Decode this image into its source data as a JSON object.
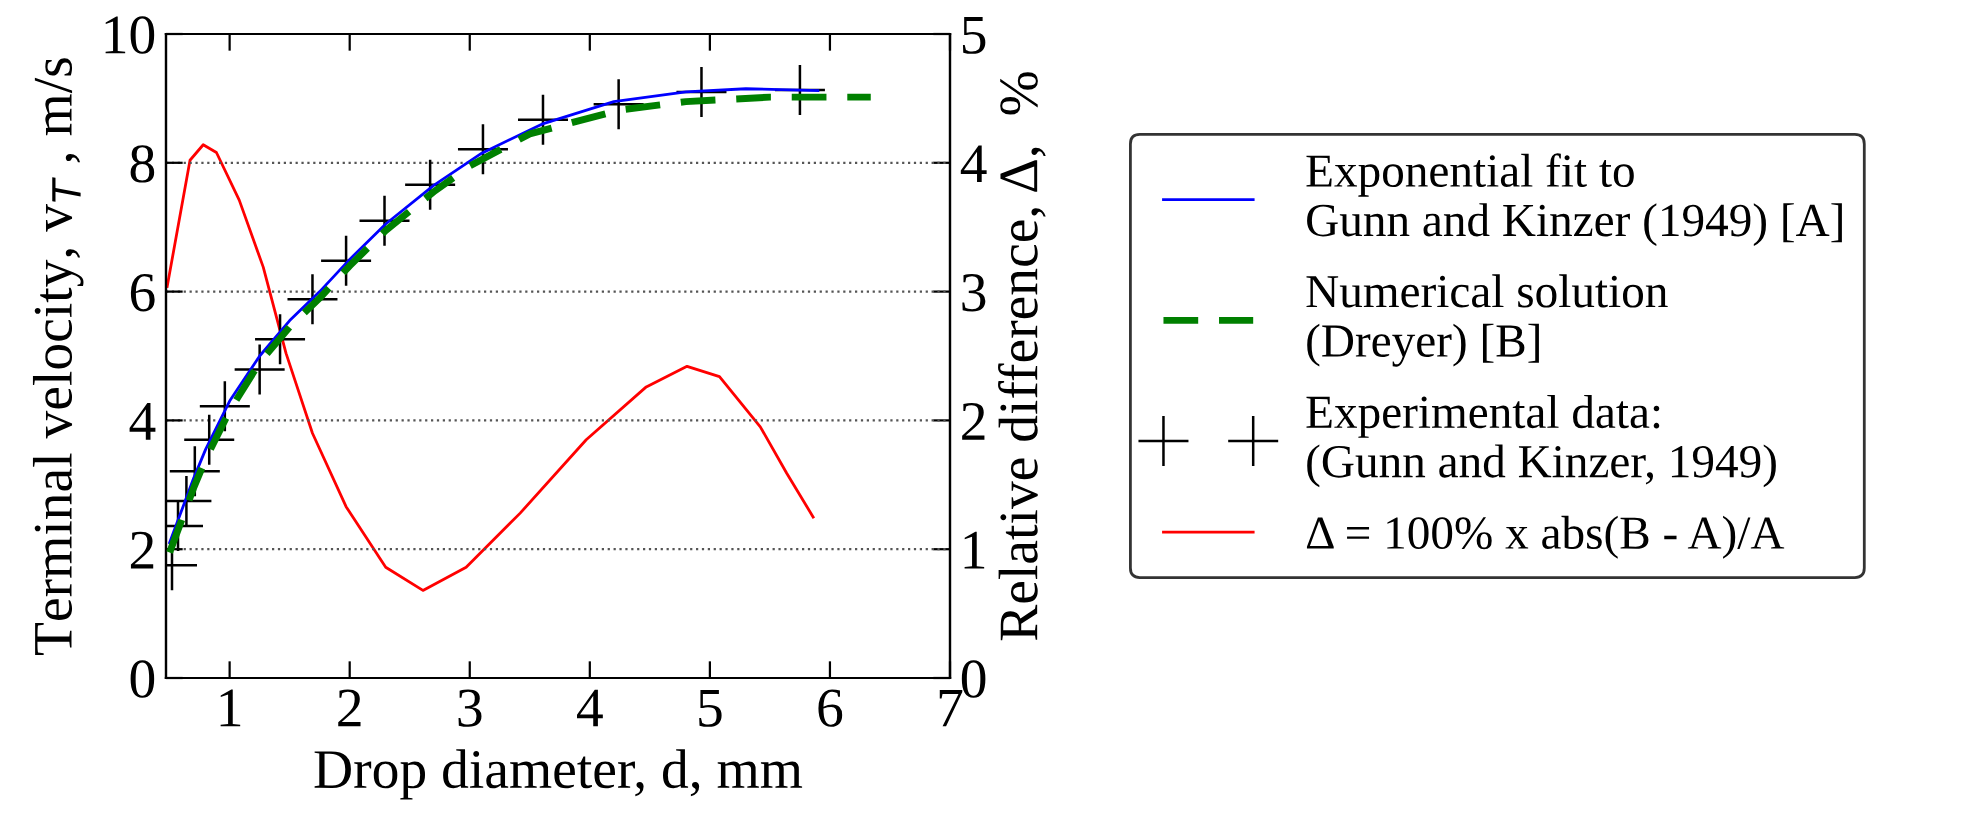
{
  "chart_data": {
    "type": "line",
    "xlabel": "Drop diameter, d, mm",
    "ylabel": "Terminal velocity, v$_{T}$ , m/s",
    "y2label": "Relative difference, Δ,  %",
    "xlim": [
      0.47,
      7
    ],
    "xticks": [
      1,
      2,
      3,
      4,
      5,
      6,
      7
    ],
    "ylim": [
      0,
      10
    ],
    "yticks": [
      0,
      2,
      4,
      6,
      8,
      10
    ],
    "y2lim": [
      0,
      5
    ],
    "y2ticks": [
      0,
      1,
      2,
      3,
      4,
      5
    ],
    "grid": "y",
    "legend": "right",
    "series": [
      {
        "name": "Exponential fit to\nGunn and Kinzer (1949) [A]",
        "color": "#0000ff",
        "line_style": "solid",
        "x": [
          0.5,
          0.6,
          0.7,
          0.8,
          1.0,
          1.25,
          1.5,
          1.75,
          2.0,
          2.3,
          2.7,
          3.1,
          3.6,
          4.2,
          4.8,
          5.3,
          5.9
        ],
        "values": [
          2.1,
          2.6,
          3.1,
          3.55,
          4.3,
          5.0,
          5.55,
          6.0,
          6.5,
          7.05,
          7.65,
          8.15,
          8.6,
          8.95,
          9.1,
          9.15,
          9.12
        ]
      },
      {
        "name": "Numerical solution\n(Dreyer) [B]",
        "color": "#008000",
        "line_style": "dashed",
        "x": [
          0.5,
          0.6,
          0.7,
          0.8,
          1.0,
          1.25,
          1.5,
          1.75,
          2.0,
          2.3,
          2.7,
          3.0,
          3.5,
          4.25,
          4.8,
          5.5,
          6.34
        ],
        "values": [
          1.95,
          2.45,
          2.95,
          3.4,
          4.15,
          4.9,
          5.45,
          5.9,
          6.4,
          6.95,
          7.55,
          7.95,
          8.45,
          8.82,
          8.95,
          9.02,
          9.02
        ]
      },
      {
        "name": "Experimental data:\n(Gunn and Kinzer, 1949)",
        "type": "scatter",
        "color": "#000000",
        "marker": "cross",
        "x": [
          0.52,
          0.57,
          0.64,
          0.71,
          0.83,
          0.96,
          1.25,
          1.42,
          1.69,
          1.97,
          2.29,
          2.67,
          3.11,
          3.61,
          4.24,
          4.93,
          5.75
        ],
        "values": [
          1.75,
          2.36,
          2.75,
          3.21,
          3.7,
          4.22,
          4.79,
          5.26,
          5.88,
          6.48,
          7.1,
          7.66,
          8.21,
          8.67,
          8.91,
          9.1,
          9.13
        ]
      },
      {
        "name": "Δ = 100% x abs(B - A)/A",
        "axis": "y2",
        "color": "#ff0000",
        "line_style": "solid",
        "x": [
          0.48,
          0.67,
          0.78,
          0.89,
          1.08,
          1.28,
          1.47,
          1.69,
          1.97,
          2.3,
          2.61,
          2.97,
          3.42,
          3.97,
          4.47,
          4.81,
          5.08,
          5.42,
          5.64,
          5.86
        ],
        "values": [
          3.04,
          4.02,
          4.14,
          4.08,
          3.71,
          3.19,
          2.52,
          1.9,
          1.33,
          0.86,
          0.68,
          0.86,
          1.28,
          1.85,
          2.26,
          2.42,
          2.34,
          1.95,
          1.59,
          1.25
        ]
      }
    ]
  }
}
